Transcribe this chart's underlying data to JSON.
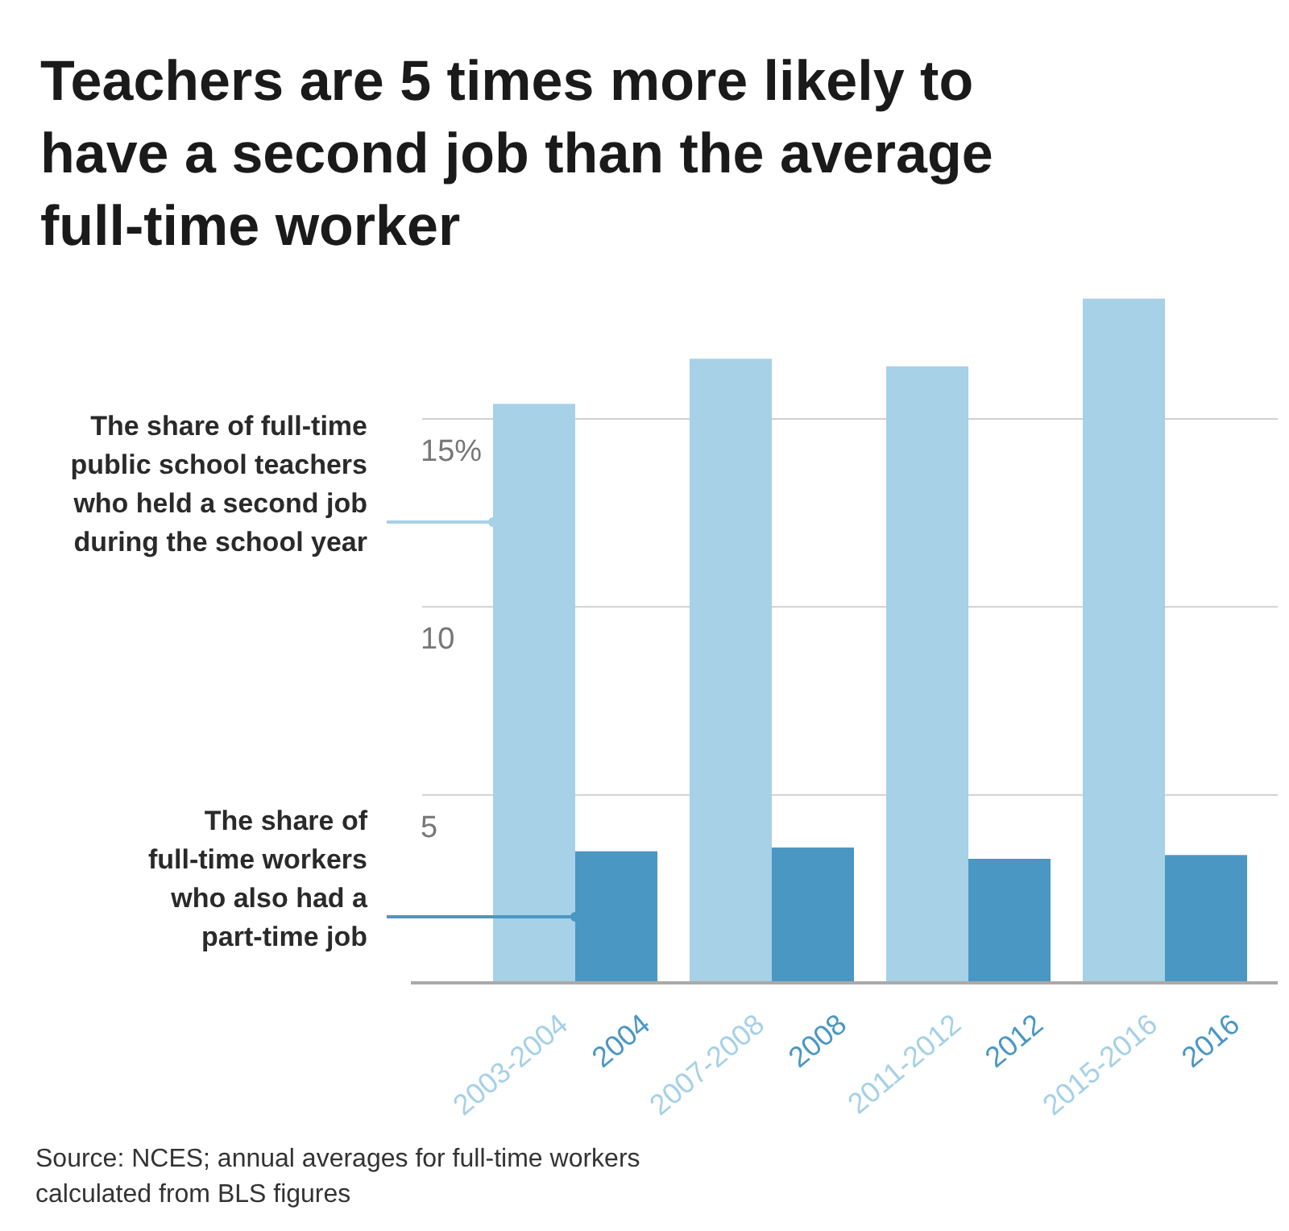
{
  "chart_data": {
    "type": "bar",
    "title": "Teachers are 5 times more likely to have a second job than the average full-time worker",
    "categories": [
      "2003-2004",
      "2004",
      "2007-2008",
      "2008",
      "2011-2012",
      "2012",
      "2015-2016",
      "2016"
    ],
    "series": [
      {
        "name": "The share of full-time public school teachers who held a second job during the school year",
        "color": "#a6d1e6",
        "values": [
          15.4,
          null,
          16.6,
          null,
          16.4,
          null,
          18.2,
          null
        ]
      },
      {
        "name": "The share of full-time workers who also had a part-time job",
        "color": "#4a97c3",
        "values": [
          null,
          3.5,
          null,
          3.6,
          null,
          3.3,
          null,
          3.4
        ]
      }
    ],
    "ylim": [
      0,
      18.3
    ],
    "yticks": [
      5,
      10,
      {
        "value": 15,
        "label": "15%"
      }
    ],
    "grid": "y",
    "legend": "left",
    "annotations": [
      "Source: NCES; annual averages for full-time workers calculated from BLS figures"
    ]
  }
}
